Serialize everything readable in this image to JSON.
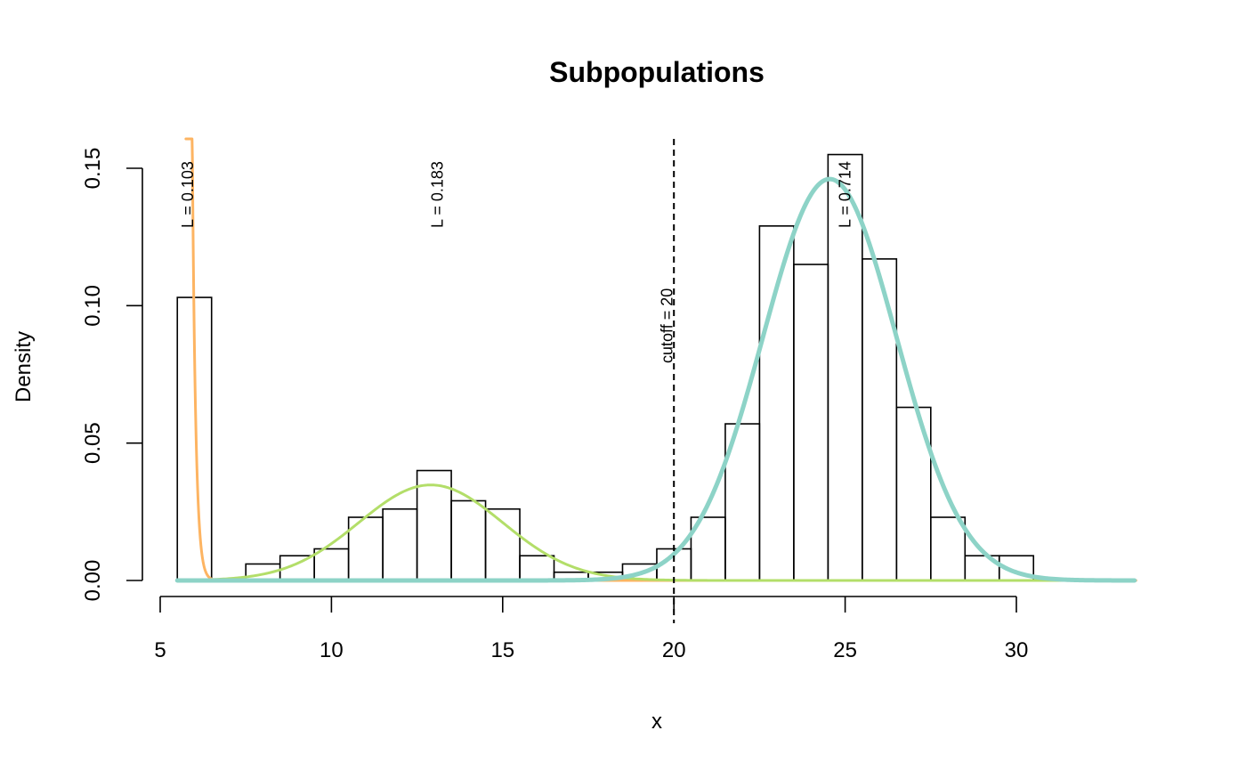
{
  "chart_data": {
    "type": "bar",
    "title": "Subpopulations",
    "xlabel": "x",
    "ylabel": "Density",
    "xlim": [
      5,
      33.5
    ],
    "ylim": [
      0,
      0.16
    ],
    "x_ticks": [
      5,
      10,
      15,
      20,
      25,
      30
    ],
    "x_tick_labels": [
      "5",
      "10",
      "15",
      "20",
      "25",
      "30"
    ],
    "y_ticks": [
      0.0,
      0.05,
      0.1,
      0.15
    ],
    "y_tick_labels": [
      "0.00",
      "0.05",
      "0.10",
      "0.15"
    ],
    "histogram": {
      "bin_edges": [
        5.5,
        6.5,
        7.5,
        8.5,
        9.5,
        10.5,
        11.5,
        12.5,
        13.5,
        14.5,
        15.5,
        16.5,
        17.5,
        18.5,
        19.5,
        20.5,
        21.5,
        22.5,
        23.5,
        24.5,
        25.5,
        26.5,
        27.5,
        28.5,
        29.5,
        30.5
      ],
      "densities": [
        0.103,
        0.0,
        0.006,
        0.009,
        0.0115,
        0.023,
        0.026,
        0.04,
        0.029,
        0.026,
        0.009,
        0.003,
        0.003,
        0.006,
        0.0115,
        0.023,
        0.057,
        0.129,
        0.115,
        0.155,
        0.117,
        0.063,
        0.023,
        0.009,
        0.009
      ]
    },
    "series": [
      {
        "name": "L = 0.103",
        "color": "#fdb462",
        "kind": "exponential",
        "lambda": 10,
        "start": 5.75,
        "scale": 0.103,
        "width": 3
      },
      {
        "name": "L = 0.183",
        "color": "#b3de69",
        "kind": "normal",
        "mean": 12.9,
        "sd": 2.1,
        "scale": 0.183,
        "width": 3
      },
      {
        "name": "L = 0.714",
        "color": "#8dd3c7",
        "kind": "normal",
        "mean": 24.55,
        "sd": 1.95,
        "scale": 0.714,
        "width": 5
      }
    ],
    "annotations": [
      {
        "text": "L = 0.103",
        "x": 5.8
      },
      {
        "text": "L = 0.183",
        "x": 13.1
      },
      {
        "text": "L = 0.714",
        "x": 25.0
      },
      {
        "text": "cutoff = 20",
        "x": 19.8
      }
    ],
    "cutoff": {
      "x": 20,
      "label": "cutoff = 20"
    }
  }
}
